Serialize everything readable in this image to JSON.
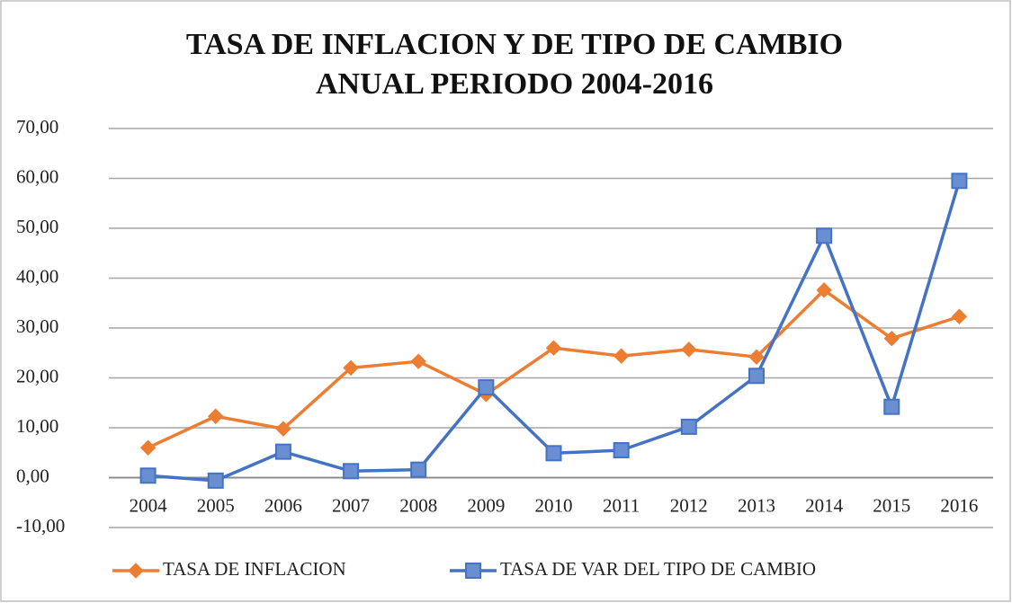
{
  "chart_data": {
    "type": "line",
    "title": [
      "TASA DE INFLACION Y DE TIPO DE CAMBIO",
      "ANUAL PERIODO 2004-2016"
    ],
    "categories": [
      "2004",
      "2005",
      "2006",
      "2007",
      "2008",
      "2009",
      "2010",
      "2011",
      "2012",
      "2013",
      "2014",
      "2015",
      "2016"
    ],
    "series": [
      {
        "name": "TASA DE INFLACION",
        "color": "#ED7D31",
        "marker": "diamond",
        "values": [
          6.0,
          12.3,
          9.8,
          22.0,
          23.3,
          16.7,
          26.0,
          24.4,
          25.7,
          24.2,
          37.6,
          27.9,
          32.3
        ]
      },
      {
        "name": "TASA DE VAR DEL TIPO DE CAMBIO",
        "color": "#4472C4",
        "marker": "square",
        "values": [
          0.4,
          -0.6,
          5.2,
          1.3,
          1.6,
          18.1,
          4.9,
          5.5,
          10.2,
          20.4,
          48.5,
          14.2,
          59.5
        ]
      }
    ],
    "ylim": [
      -10,
      70
    ],
    "yticks": [
      {
        "value": -10,
        "label": "-10,00"
      },
      {
        "value": 0,
        "label": "0,00"
      },
      {
        "value": 10,
        "label": "10,00"
      },
      {
        "value": 20,
        "label": "20,00"
      },
      {
        "value": 30,
        "label": "30,00"
      },
      {
        "value": 40,
        "label": "40,00"
      },
      {
        "value": 50,
        "label": "50,00"
      },
      {
        "value": 60,
        "label": "60,00"
      },
      {
        "value": 70,
        "label": "70,00"
      }
    ],
    "grid": true,
    "legend": "bottom"
  }
}
